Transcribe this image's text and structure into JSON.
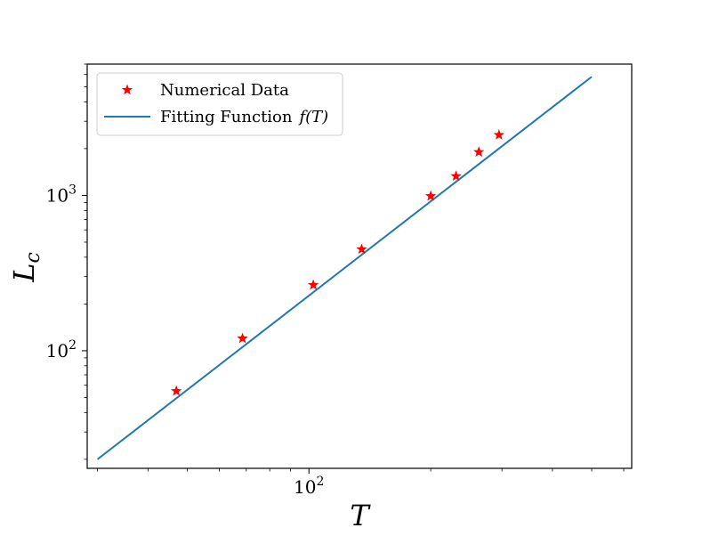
{
  "chart_data": {
    "type": "scatter",
    "xscale": "log",
    "yscale": "log",
    "xlim": [
      28.3,
      628
    ],
    "ylim": [
      17.5,
      7000
    ],
    "xlabel": "T",
    "ylabel_main": "L",
    "ylabel_sub": "c",
    "x_ticks": [
      {
        "base": "10",
        "exp": "2",
        "value": 100
      }
    ],
    "y_ticks": [
      {
        "base": "10",
        "exp": "2",
        "value": 100
      },
      {
        "base": "10",
        "exp": "3",
        "value": 1000
      }
    ],
    "grid": false,
    "legend_position": "upper-left",
    "series": [
      {
        "name": "Numerical Data",
        "kind": "scatter",
        "marker": "star",
        "color": "#ff0000",
        "x": [
          47,
          68.5,
          102.5,
          135,
          200,
          231,
          263,
          295
        ],
        "y": [
          55,
          120,
          265,
          450,
          990,
          1330,
          1900,
          2450
        ]
      },
      {
        "name": "Fitting Function",
        "name_math": "f(T)",
        "kind": "line",
        "color": "#1f77b4",
        "x": [
          30,
          500
        ],
        "y": [
          20,
          5800
        ]
      }
    ]
  }
}
